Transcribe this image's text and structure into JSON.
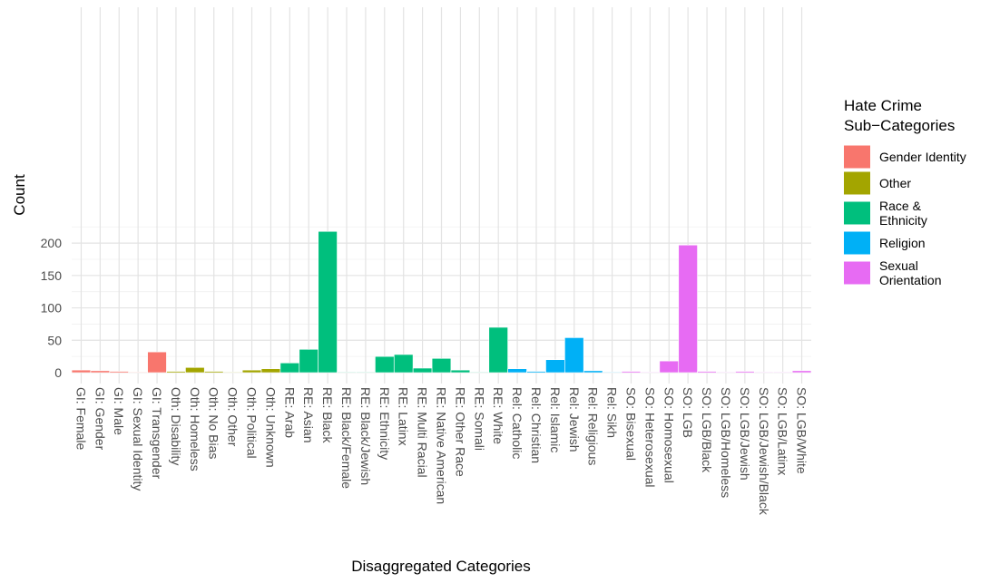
{
  "chart_data": {
    "type": "bar",
    "title": "",
    "xlabel": "Disaggregated Categories",
    "ylabel": "Count",
    "ylim": [
      0,
      230
    ],
    "yticks": [
      0,
      50,
      100,
      150,
      200
    ],
    "grid": true,
    "legend": {
      "title_lines": [
        "Hate Crime",
        "Sub−Categories"
      ],
      "placement": "right",
      "entries": [
        {
          "key": "GI",
          "lines": [
            "Gender Identity"
          ],
          "color": "#F8766D"
        },
        {
          "key": "Oth",
          "lines": [
            "Other"
          ],
          "color": "#A3A500"
        },
        {
          "key": "RE",
          "lines": [
            "Race &",
            "Ethnicity"
          ],
          "color": "#00BF7D"
        },
        {
          "key": "Rel",
          "lines": [
            "Religion"
          ],
          "color": "#00B0F6"
        },
        {
          "key": "SO",
          "lines": [
            "Sexual",
            "Orientation"
          ],
          "color": "#E76BF3"
        }
      ]
    },
    "categories": [
      "GI: Female",
      "GI: Gender",
      "GI: Male",
      "GI: Sexual Identity",
      "GI: Transgender",
      "Oth: Disability",
      "Oth: Homeless",
      "Oth: No Bias",
      "Oth: Other",
      "Oth: Political",
      "Oth: Unknown",
      "RE: Arab",
      "RE: Asian",
      "RE: Black",
      "RE: Black/Female",
      "RE: Black/Jewish",
      "RE: Ethnicity",
      "RE: Latinx",
      "RE: Multi Racial",
      "RE: Native American",
      "RE: Other Race",
      "RE: Somali",
      "RE: White",
      "Rel: Catholic",
      "Rel: Christian",
      "Rel: Islamic",
      "Rel: Jewish",
      "Rel: Religious",
      "Rel: Sikh",
      "SO: Bisexual",
      "SO: Heterosexual",
      "SO: Homosexual",
      "SO: LGB",
      "SO: LGB/Black",
      "SO: LGB/Homeless",
      "SO: LGB/Jewish",
      "SO: LGB/Jewish/Black",
      "SO: LGB/Latinx",
      "SO: LGB/White"
    ],
    "groups": [
      "GI",
      "GI",
      "GI",
      "GI",
      "GI",
      "Oth",
      "Oth",
      "Oth",
      "Oth",
      "Oth",
      "Oth",
      "RE",
      "RE",
      "RE",
      "RE",
      "RE",
      "RE",
      "RE",
      "RE",
      "RE",
      "RE",
      "RE",
      "RE",
      "Rel",
      "Rel",
      "Rel",
      "Rel",
      "Rel",
      "Rel",
      "SO",
      "SO",
      "SO",
      "SO",
      "SO",
      "SO",
      "SO",
      "SO",
      "SO",
      "SO"
    ],
    "values": [
      4,
      3,
      2,
      1,
      32,
      2,
      8,
      2,
      1,
      4,
      6,
      15,
      36,
      218,
      1,
      1,
      25,
      28,
      7,
      22,
      4,
      1,
      70,
      6,
      2,
      20,
      54,
      3,
      1,
      2,
      1,
      18,
      197,
      2,
      1,
      2,
      1,
      1,
      3
    ]
  }
}
